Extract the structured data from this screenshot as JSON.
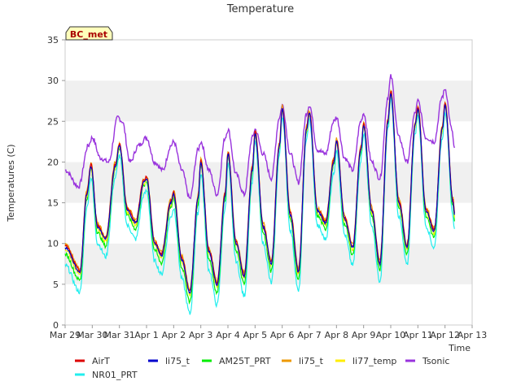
{
  "chart_data": {
    "type": "line",
    "title": "Temperature",
    "site_badge": "BC_met",
    "xlabel": "Time",
    "ylabel": "Temperatures (C)",
    "ylim": [
      0,
      35
    ],
    "y_ticks": [
      0,
      5,
      10,
      15,
      20,
      25,
      30,
      35
    ],
    "x_ticks": [
      "Mar 29",
      "Mar 30",
      "Mar 31",
      "Apr 1",
      "Apr 2",
      "Apr 3",
      "Apr 4",
      "Apr 5",
      "Apr 6",
      "Apr 7",
      "Apr 8",
      "Apr 9",
      "Apr 10",
      "Apr 11",
      "Apr 12",
      "Apr 13"
    ],
    "xlim_days": [
      0,
      15
    ],
    "grid": "horizontal bands",
    "legend": "bottom",
    "series_order_in_legend": [
      "AirT",
      "NR01_PRT",
      "li75_t",
      "AM25T_PRT",
      "li75_t_2",
      "li77_temp",
      "Tsonic"
    ],
    "series": [
      {
        "key": "AirT",
        "name": "AirT",
        "color": "#dd0000",
        "off": 0.2,
        "amp": 1.0,
        "noise": 0.2
      },
      {
        "key": "NR01_PRT",
        "name": "NR01_PRT",
        "color": "#22eeee",
        "off": -1.8,
        "amp": 1.08,
        "noise": 0.3
      },
      {
        "key": "li75_t",
        "name": "li75_t",
        "color": "#0000cc",
        "off": 0.0,
        "amp": 1.0,
        "noise": 0.15
      },
      {
        "key": "AM25T_PRT",
        "name": "AM25T_PRT",
        "color": "#00ee00",
        "off": -0.6,
        "amp": 1.05,
        "noise": 0.25
      },
      {
        "key": "li75_t_2",
        "name": "li75_t",
        "color": "#ee9900",
        "off": 0.4,
        "amp": 1.0,
        "noise": 0.25
      },
      {
        "key": "li77_temp",
        "name": "li77_temp",
        "color": "#ffee00",
        "off": -0.2,
        "amp": 1.0,
        "noise": 0.2
      },
      {
        "key": "Tsonic",
        "name": "Tsonic",
        "color": "#9933dd",
        "off": 0,
        "amp": 1.0,
        "noise": 0.3
      }
    ],
    "base_profile": [
      {
        "t": 0.0,
        "y": 9.5
      },
      {
        "t": 0.55,
        "y": 6.5
      },
      {
        "t": 0.8,
        "y": 16.0
      },
      {
        "t": 0.95,
        "y": 19.5
      },
      {
        "t": 1.2,
        "y": 12.0
      },
      {
        "t": 1.5,
        "y": 10.5
      },
      {
        "t": 1.85,
        "y": 19.5
      },
      {
        "t": 2.0,
        "y": 22.0
      },
      {
        "t": 2.3,
        "y": 14.0
      },
      {
        "t": 2.6,
        "y": 12.5
      },
      {
        "t": 2.9,
        "y": 17.5
      },
      {
        "t": 3.0,
        "y": 18.0
      },
      {
        "t": 3.3,
        "y": 10.0
      },
      {
        "t": 3.55,
        "y": 8.5
      },
      {
        "t": 3.9,
        "y": 15.0
      },
      {
        "t": 4.0,
        "y": 16.0
      },
      {
        "t": 4.3,
        "y": 8.0
      },
      {
        "t": 4.6,
        "y": 4.0
      },
      {
        "t": 4.9,
        "y": 15.5
      },
      {
        "t": 5.0,
        "y": 20.0
      },
      {
        "t": 5.3,
        "y": 9.0
      },
      {
        "t": 5.6,
        "y": 5.0
      },
      {
        "t": 5.9,
        "y": 16.0
      },
      {
        "t": 6.0,
        "y": 21.0
      },
      {
        "t": 6.3,
        "y": 10.0
      },
      {
        "t": 6.6,
        "y": 6.0
      },
      {
        "t": 6.9,
        "y": 19.0
      },
      {
        "t": 7.0,
        "y": 23.5
      },
      {
        "t": 7.3,
        "y": 12.0
      },
      {
        "t": 7.6,
        "y": 7.5
      },
      {
        "t": 7.9,
        "y": 22.0
      },
      {
        "t": 8.0,
        "y": 26.5
      },
      {
        "t": 8.3,
        "y": 13.5
      },
      {
        "t": 8.6,
        "y": 6.5
      },
      {
        "t": 8.9,
        "y": 24.0
      },
      {
        "t": 9.0,
        "y": 26.0
      },
      {
        "t": 9.3,
        "y": 14.0
      },
      {
        "t": 9.6,
        "y": 12.5
      },
      {
        "t": 9.9,
        "y": 20.0
      },
      {
        "t": 10.0,
        "y": 22.5
      },
      {
        "t": 10.3,
        "y": 13.0
      },
      {
        "t": 10.6,
        "y": 9.5
      },
      {
        "t": 10.9,
        "y": 21.5
      },
      {
        "t": 11.0,
        "y": 24.5
      },
      {
        "t": 11.3,
        "y": 14.0
      },
      {
        "t": 11.6,
        "y": 7.5
      },
      {
        "t": 11.9,
        "y": 25.0
      },
      {
        "t": 12.0,
        "y": 28.5
      },
      {
        "t": 12.3,
        "y": 15.0
      },
      {
        "t": 12.6,
        "y": 9.5
      },
      {
        "t": 12.9,
        "y": 24.5
      },
      {
        "t": 13.0,
        "y": 26.5
      },
      {
        "t": 13.3,
        "y": 14.0
      },
      {
        "t": 13.6,
        "y": 11.5
      },
      {
        "t": 13.9,
        "y": 24.0
      },
      {
        "t": 14.0,
        "y": 27.0
      },
      {
        "t": 14.3,
        "y": 15.0
      },
      {
        "t": 14.35,
        "y": 13.5
      }
    ],
    "tsonic_profile": [
      {
        "t": 0.0,
        "y": 19.0
      },
      {
        "t": 0.5,
        "y": 17.0
      },
      {
        "t": 0.85,
        "y": 22.0
      },
      {
        "t": 1.0,
        "y": 23.0
      },
      {
        "t": 1.3,
        "y": 20.5
      },
      {
        "t": 1.6,
        "y": 20.0
      },
      {
        "t": 1.95,
        "y": 25.5
      },
      {
        "t": 2.1,
        "y": 25.0
      },
      {
        "t": 2.4,
        "y": 20.0
      },
      {
        "t": 2.7,
        "y": 22.0
      },
      {
        "t": 3.0,
        "y": 23.0
      },
      {
        "t": 3.3,
        "y": 20.0
      },
      {
        "t": 3.6,
        "y": 19.0
      },
      {
        "t": 3.9,
        "y": 22.0
      },
      {
        "t": 4.0,
        "y": 22.5
      },
      {
        "t": 4.3,
        "y": 19.0
      },
      {
        "t": 4.6,
        "y": 15.5
      },
      {
        "t": 4.9,
        "y": 21.5
      },
      {
        "t": 5.0,
        "y": 22.5
      },
      {
        "t": 5.3,
        "y": 19.0
      },
      {
        "t": 5.6,
        "y": 16.0
      },
      {
        "t": 5.9,
        "y": 23.0
      },
      {
        "t": 6.0,
        "y": 24.0
      },
      {
        "t": 6.3,
        "y": 18.5
      },
      {
        "t": 6.6,
        "y": 16.0
      },
      {
        "t": 6.9,
        "y": 23.0
      },
      {
        "t": 7.0,
        "y": 24.0
      },
      {
        "t": 7.3,
        "y": 21.0
      },
      {
        "t": 7.6,
        "y": 18.0
      },
      {
        "t": 7.9,
        "y": 25.5
      },
      {
        "t": 8.0,
        "y": 27.0
      },
      {
        "t": 8.3,
        "y": 21.0
      },
      {
        "t": 8.6,
        "y": 17.5
      },
      {
        "t": 8.9,
        "y": 26.0
      },
      {
        "t": 9.0,
        "y": 27.0
      },
      {
        "t": 9.3,
        "y": 21.5
      },
      {
        "t": 9.6,
        "y": 21.0
      },
      {
        "t": 9.9,
        "y": 25.0
      },
      {
        "t": 10.0,
        "y": 25.5
      },
      {
        "t": 10.3,
        "y": 20.5
      },
      {
        "t": 10.6,
        "y": 19.0
      },
      {
        "t": 10.9,
        "y": 25.0
      },
      {
        "t": 11.0,
        "y": 26.0
      },
      {
        "t": 11.3,
        "y": 20.0
      },
      {
        "t": 11.6,
        "y": 18.0
      },
      {
        "t": 11.9,
        "y": 28.0
      },
      {
        "t": 12.0,
        "y": 30.5
      },
      {
        "t": 12.3,
        "y": 23.0
      },
      {
        "t": 12.6,
        "y": 20.0
      },
      {
        "t": 12.9,
        "y": 26.0
      },
      {
        "t": 13.0,
        "y": 27.5
      },
      {
        "t": 13.3,
        "y": 23.0
      },
      {
        "t": 13.6,
        "y": 22.5
      },
      {
        "t": 13.9,
        "y": 28.0
      },
      {
        "t": 14.0,
        "y": 29.0
      },
      {
        "t": 14.25,
        "y": 24.0
      },
      {
        "t": 14.35,
        "y": 21.5
      }
    ]
  }
}
